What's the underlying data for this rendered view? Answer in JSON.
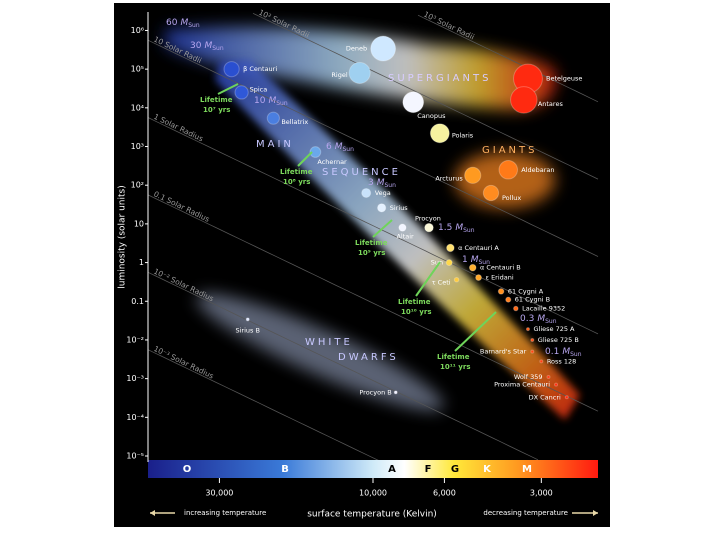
{
  "chart_data": {
    "type": "scatter",
    "xlabel": "surface temperature (Kelvin)",
    "ylabel": "luminosity (solar units)",
    "xscale": "log",
    "yscale": "log",
    "xlim": [
      50000,
      2000
    ],
    "ylim": [
      7e-06,
      3000000
    ],
    "xticks": [
      {
        "value": 30000,
        "label": "30,000"
      },
      {
        "value": 10000,
        "label": "10,000"
      },
      {
        "value": 6000,
        "label": "6,000"
      },
      {
        "value": 3000,
        "label": "3,000"
      }
    ],
    "yticks": [
      {
        "value": 1000000,
        "label": "10⁶"
      },
      {
        "value": 100000,
        "label": "10⁵"
      },
      {
        "value": 10000,
        "label": "10⁴"
      },
      {
        "value": 1000,
        "label": "10³"
      },
      {
        "value": 100,
        "label": "10²"
      },
      10,
      1,
      0.1,
      {
        "value": 0.01,
        "label": "10⁻²"
      },
      {
        "value": 0.001,
        "label": "10⁻³"
      },
      {
        "value": 0.0001,
        "label": "10⁻⁴"
      },
      {
        "value": 1e-05,
        "label": "10⁻⁵"
      }
    ],
    "radius_lines": [
      {
        "value": 1000,
        "label": "10³ Solar Radii"
      },
      {
        "value": 100,
        "label": "10² Solar Radii"
      },
      {
        "value": 10,
        "label": "10 Solar Radii"
      },
      {
        "value": 1,
        "label": "1 Solar Radius"
      },
      {
        "value": 0.1,
        "label": "0.1 Solar Radius"
      },
      {
        "value": 0.01,
        "label": "10⁻² Solar Radius"
      },
      {
        "value": 0.001,
        "label": "10⁻³ Solar Radius"
      }
    ],
    "stars": {
      "names": [
        "Deneb",
        "Rigel",
        "Betelgeuse",
        "Antares",
        "Canopus",
        "Polaris",
        "β Centauri",
        "Spica",
        "Bellatrix",
        "Achernar",
        "Vega",
        "Sirius",
        "Altair",
        "Procyon",
        "Arcturus",
        "Aldebaran",
        "Pollux",
        "α Centauri A",
        "Sun",
        "τ Ceti",
        "α Centauri B",
        "ε Eridani",
        "61 Cygni A",
        "61 Cygni B",
        "Lacaille 9352",
        "Gliese 725 A",
        "Gliese 725 B",
        "Barnard's Star",
        "Ross 128",
        "Wolf 359",
        "Proxima Centauri",
        "DX Cancri",
        "Sirius B",
        "Procyon B"
      ],
      "temperatures": [
        9300,
        11000,
        3300,
        3400,
        7500,
        6200,
        27500,
        25600,
        20400,
        15100,
        10500,
        9400,
        8100,
        6700,
        4900,
        3800,
        4300,
        5750,
        5800,
        5500,
        4900,
        4700,
        4000,
        3800,
        3600,
        3300,
        3200,
        3200,
        3000,
        2850,
        2700,
        2500,
        24500,
        8500
      ],
      "luminosities": [
        340000,
        80000,
        57000,
        16000,
        14000,
        2200,
        100000,
        25000,
        5400,
        720,
        63,
        26,
        8,
        8,
        180,
        250,
        63,
        2.4,
        1,
        0.36,
        0.74,
        0.41,
        0.18,
        0.11,
        0.065,
        0.019,
        0.01,
        0.005,
        0.0028,
        0.0011,
        0.0007,
        0.00033,
        0.034,
        0.00044
      ],
      "colors": [
        "#cfe8ff",
        "#9fd0f0",
        "#ff2a10",
        "#ff2a10",
        "#f4f6ff",
        "#f6f2a0",
        "#2a4fd0",
        "#2f58d8",
        "#4a7ee0",
        "#6aa8ea",
        "#c8e2fb",
        "#e4f1ff",
        "#f2f5ff",
        "#fbf8d8",
        "#ff9a20",
        "#ff7a18",
        "#ff8c20",
        "#ffe070",
        "#ffd84a",
        "#ffcc40",
        "#ffb030",
        "#ffa82a",
        "#ff9020",
        "#ff8020",
        "#ff6a18",
        "#ff5a14",
        "#ff5012",
        "#ff4810",
        "#ff4010",
        "#ff3a10",
        "#ff3010",
        "#ff2a10",
        "#e0e8ff",
        "#f0f0ff"
      ]
    },
    "regions": [
      "SUPERGIANTS",
      "GIANTS",
      "MAIN",
      "SEQUENCE",
      "WHITE",
      "DWARFS"
    ],
    "masses": [
      "60",
      "30",
      "10",
      "6",
      "3",
      "1.5",
      "1",
      "0.3",
      "0.1"
    ],
    "mass_unit": "M",
    "mass_unit_sub": "Sun",
    "lifetime_word": "Lifetime",
    "lifetimes": [
      "10⁷ yrs",
      "10⁸ yrs",
      "10⁹ yrs",
      "10¹⁰ yrs",
      "10¹¹ yrs"
    ],
    "spectral_classes": [
      "O",
      "B",
      "A",
      "F",
      "G",
      "K",
      "M"
    ],
    "left_note": "increasing temperature",
    "right_note": "decreasing temperature"
  }
}
